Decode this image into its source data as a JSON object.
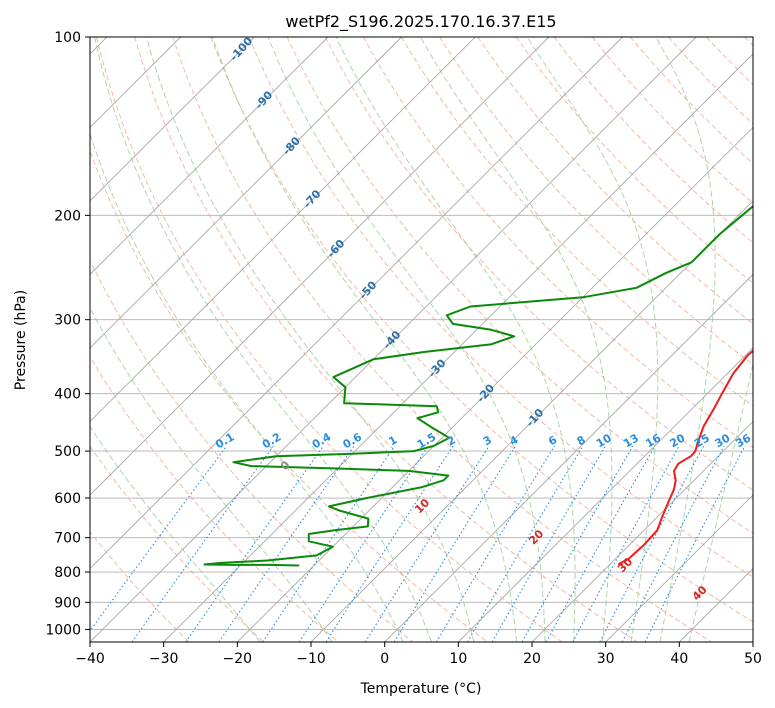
{
  "chart_data": {
    "type": "line",
    "title": "wetPf2_S196.2025.170.16.37.E15",
    "xlabel": "Temperature (°C)",
    "ylabel": "Pressure (hPa)",
    "xlim": [
      -40,
      50
    ],
    "ylim": [
      1050,
      100
    ],
    "y_scale": "log",
    "grid": true,
    "x_ticks": [
      -40,
      -30,
      -20,
      -10,
      0,
      10,
      20,
      30,
      40,
      50
    ],
    "y_ticks": [
      100,
      200,
      300,
      400,
      500,
      600,
      700,
      800,
      900,
      1000
    ],
    "skew_temperature_labels": [
      -100,
      -90,
      -80,
      -70,
      -60,
      -50,
      -40,
      -30,
      -20,
      -10
    ],
    "mixing_ratio_labels": [
      "0.1",
      "0.2",
      "0.4",
      "0.6",
      "1",
      "1.5",
      "2",
      "3",
      "4",
      "6",
      "8",
      "10",
      "13",
      "16",
      "20",
      "25",
      "30",
      "36"
    ],
    "moist_adiabat_labels": [
      "0",
      "10",
      "20",
      "30",
      "40"
    ],
    "colors": {
      "temperature": "#ee1c1c",
      "dewpoint": "#0a8a0a",
      "isotherm_label": "#2a6fa8",
      "mixing_ratio": "#2b8ce0",
      "moist_adiabat_label": "#d62728",
      "dry_adiabat": "#f2a184",
      "moist_adiabat": "#9fcf9a",
      "skew_isotherm": "#a9a9a9"
    },
    "series": [
      {
        "key": "temperature",
        "points": [
          [
            21.5,
            780
          ],
          [
            21.2,
            775
          ],
          [
            21.8,
            760
          ],
          [
            22.0,
            720
          ],
          [
            21.8,
            680
          ],
          [
            20.8,
            650
          ],
          [
            19.5,
            610
          ],
          [
            18.5,
            580
          ],
          [
            17.5,
            560
          ],
          [
            16.0,
            540
          ],
          [
            15.6,
            525
          ],
          [
            16.3,
            510
          ],
          [
            16.2,
            500
          ],
          [
            15.2,
            480
          ],
          [
            14.0,
            455
          ],
          [
            13.0,
            425
          ],
          [
            12.0,
            400
          ],
          [
            10.8,
            370
          ],
          [
            10.3,
            345
          ],
          [
            10.6,
            325
          ],
          [
            10.5,
            300
          ],
          [
            9.8,
            280
          ],
          [
            8.8,
            265
          ],
          [
            7.8,
            250
          ],
          [
            6.5,
            235
          ],
          [
            5.3,
            220
          ],
          [
            4.8,
            200
          ],
          [
            4.7,
            180
          ],
          [
            4.5,
            160
          ],
          [
            3.8,
            140
          ],
          [
            3.0,
            130
          ],
          [
            3.5,
            120
          ],
          [
            6.0,
            110
          ],
          [
            8.0,
            100
          ]
        ]
      },
      {
        "key": "dewpoint",
        "points": [
          [
            -22,
            780
          ],
          [
            -26,
            778
          ],
          [
            -31,
            778
          ],
          [
            -35,
            777
          ],
          [
            -33,
            772
          ],
          [
            -27,
            765
          ],
          [
            -21,
            750
          ],
          [
            -20,
            725
          ],
          [
            -24,
            710
          ],
          [
            -25,
            690
          ],
          [
            -22,
            680
          ],
          [
            -18,
            670
          ],
          [
            -19,
            650
          ],
          [
            -24,
            630
          ],
          [
            -26,
            620
          ],
          [
            -22,
            600
          ],
          [
            -16,
            575
          ],
          [
            -14,
            560
          ],
          [
            -14,
            550
          ],
          [
            -20,
            540
          ],
          [
            -30,
            535
          ],
          [
            -42,
            530
          ],
          [
            -45,
            522
          ],
          [
            -40,
            510
          ],
          [
            -30,
            505
          ],
          [
            -22,
            500
          ],
          [
            -20,
            490
          ],
          [
            -19,
            475
          ],
          [
            -23,
            455
          ],
          [
            -26,
            440
          ],
          [
            -24,
            430
          ],
          [
            -25,
            420
          ],
          [
            -38,
            415
          ],
          [
            -40,
            390
          ],
          [
            -43,
            375
          ],
          [
            -40,
            350
          ],
          [
            -34,
            340
          ],
          [
            -26,
            330
          ],
          [
            -24,
            320
          ],
          [
            -28,
            312
          ],
          [
            -34,
            305
          ],
          [
            -36,
            295
          ],
          [
            -34,
            285
          ],
          [
            -20,
            275
          ],
          [
            -14,
            265
          ],
          [
            -12,
            250
          ],
          [
            -10,
            240
          ],
          [
            -10,
            225
          ],
          [
            -10,
            215
          ],
          [
            -9.5,
            200
          ],
          [
            -9,
            185
          ],
          [
            -8,
            175
          ],
          [
            -6,
            160
          ],
          [
            -5,
            148
          ],
          [
            -2,
            135
          ],
          [
            0,
            120
          ],
          [
            2,
            105
          ],
          [
            3,
            100
          ]
        ]
      }
    ]
  }
}
